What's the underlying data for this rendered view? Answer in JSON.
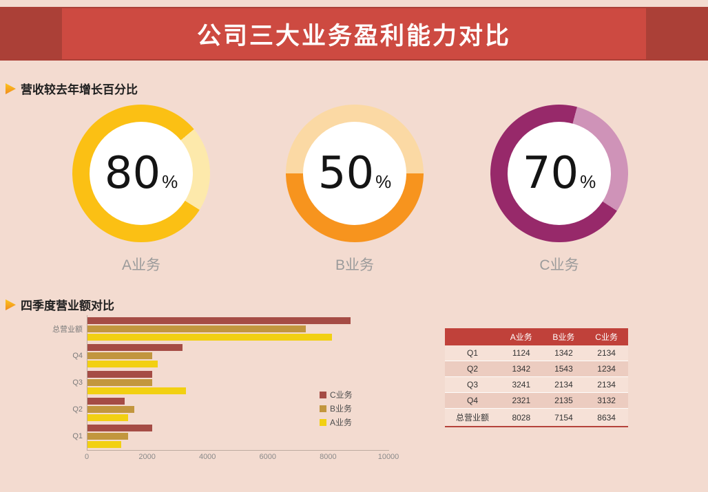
{
  "header": {
    "title": "公司三大业务盈利能力对比"
  },
  "sections": {
    "growth": {
      "title": "营收较去年增长百分比"
    },
    "quarterly": {
      "title": "四季度营业额对比"
    }
  },
  "colors": {
    "background": "#f3dbd0",
    "banner_outer": "#ab4037",
    "banner_inner": "#cd4a41",
    "table_header": "#c0413a"
  },
  "chart_data": [
    {
      "type": "pie",
      "subtype": "donut-rings",
      "title": "营收较去年增长百分比",
      "unit": "%",
      "slices": [
        {
          "label": "A业务",
          "value": 80,
          "color": "#fbc014",
          "remainder_color": "#fde9ab",
          "gap_from_deg": 50
        },
        {
          "label": "B业务",
          "value": 50,
          "color": "#f7941e",
          "remainder_color": "#fbd9a4",
          "gap_from_deg": -90
        },
        {
          "label": "C业务",
          "value": 70,
          "color": "#97296a",
          "remainder_color": "#cf93b8",
          "gap_from_deg": 15
        }
      ]
    },
    {
      "type": "bar",
      "orientation": "horizontal",
      "title": "四季度营业额对比",
      "categories": [
        "总营业额",
        "Q4",
        "Q3",
        "Q2",
        "Q1"
      ],
      "series": [
        {
          "name": "C业务",
          "color": "#a54c45",
          "values": [
            8634,
            3132,
            2134,
            1234,
            2134
          ]
        },
        {
          "name": "B业务",
          "color": "#c2963e",
          "values": [
            7154,
            2135,
            2134,
            1543,
            1342
          ]
        },
        {
          "name": "A业务",
          "color": "#f2d012",
          "values": [
            8028,
            2321,
            3241,
            1342,
            1124
          ]
        }
      ],
      "xlim": [
        0,
        10000
      ],
      "xticks": [
        0,
        2000,
        4000,
        6000,
        8000,
        10000
      ],
      "legend": {
        "position": "right-inside",
        "order": [
          "C业务",
          "B业务",
          "A业务"
        ]
      },
      "grid": false
    },
    {
      "type": "table",
      "columns": [
        "",
        "A业务",
        "B业务",
        "C业务"
      ],
      "rows": [
        [
          "Q1",
          "1124",
          "1342",
          "2134"
        ],
        [
          "Q2",
          "1342",
          "1543",
          "1234"
        ],
        [
          "Q3",
          "3241",
          "2134",
          "2134"
        ],
        [
          "Q4",
          "2321",
          "2135",
          "3132"
        ],
        [
          "总营业额",
          "8028",
          "7154",
          "8634"
        ]
      ]
    }
  ]
}
